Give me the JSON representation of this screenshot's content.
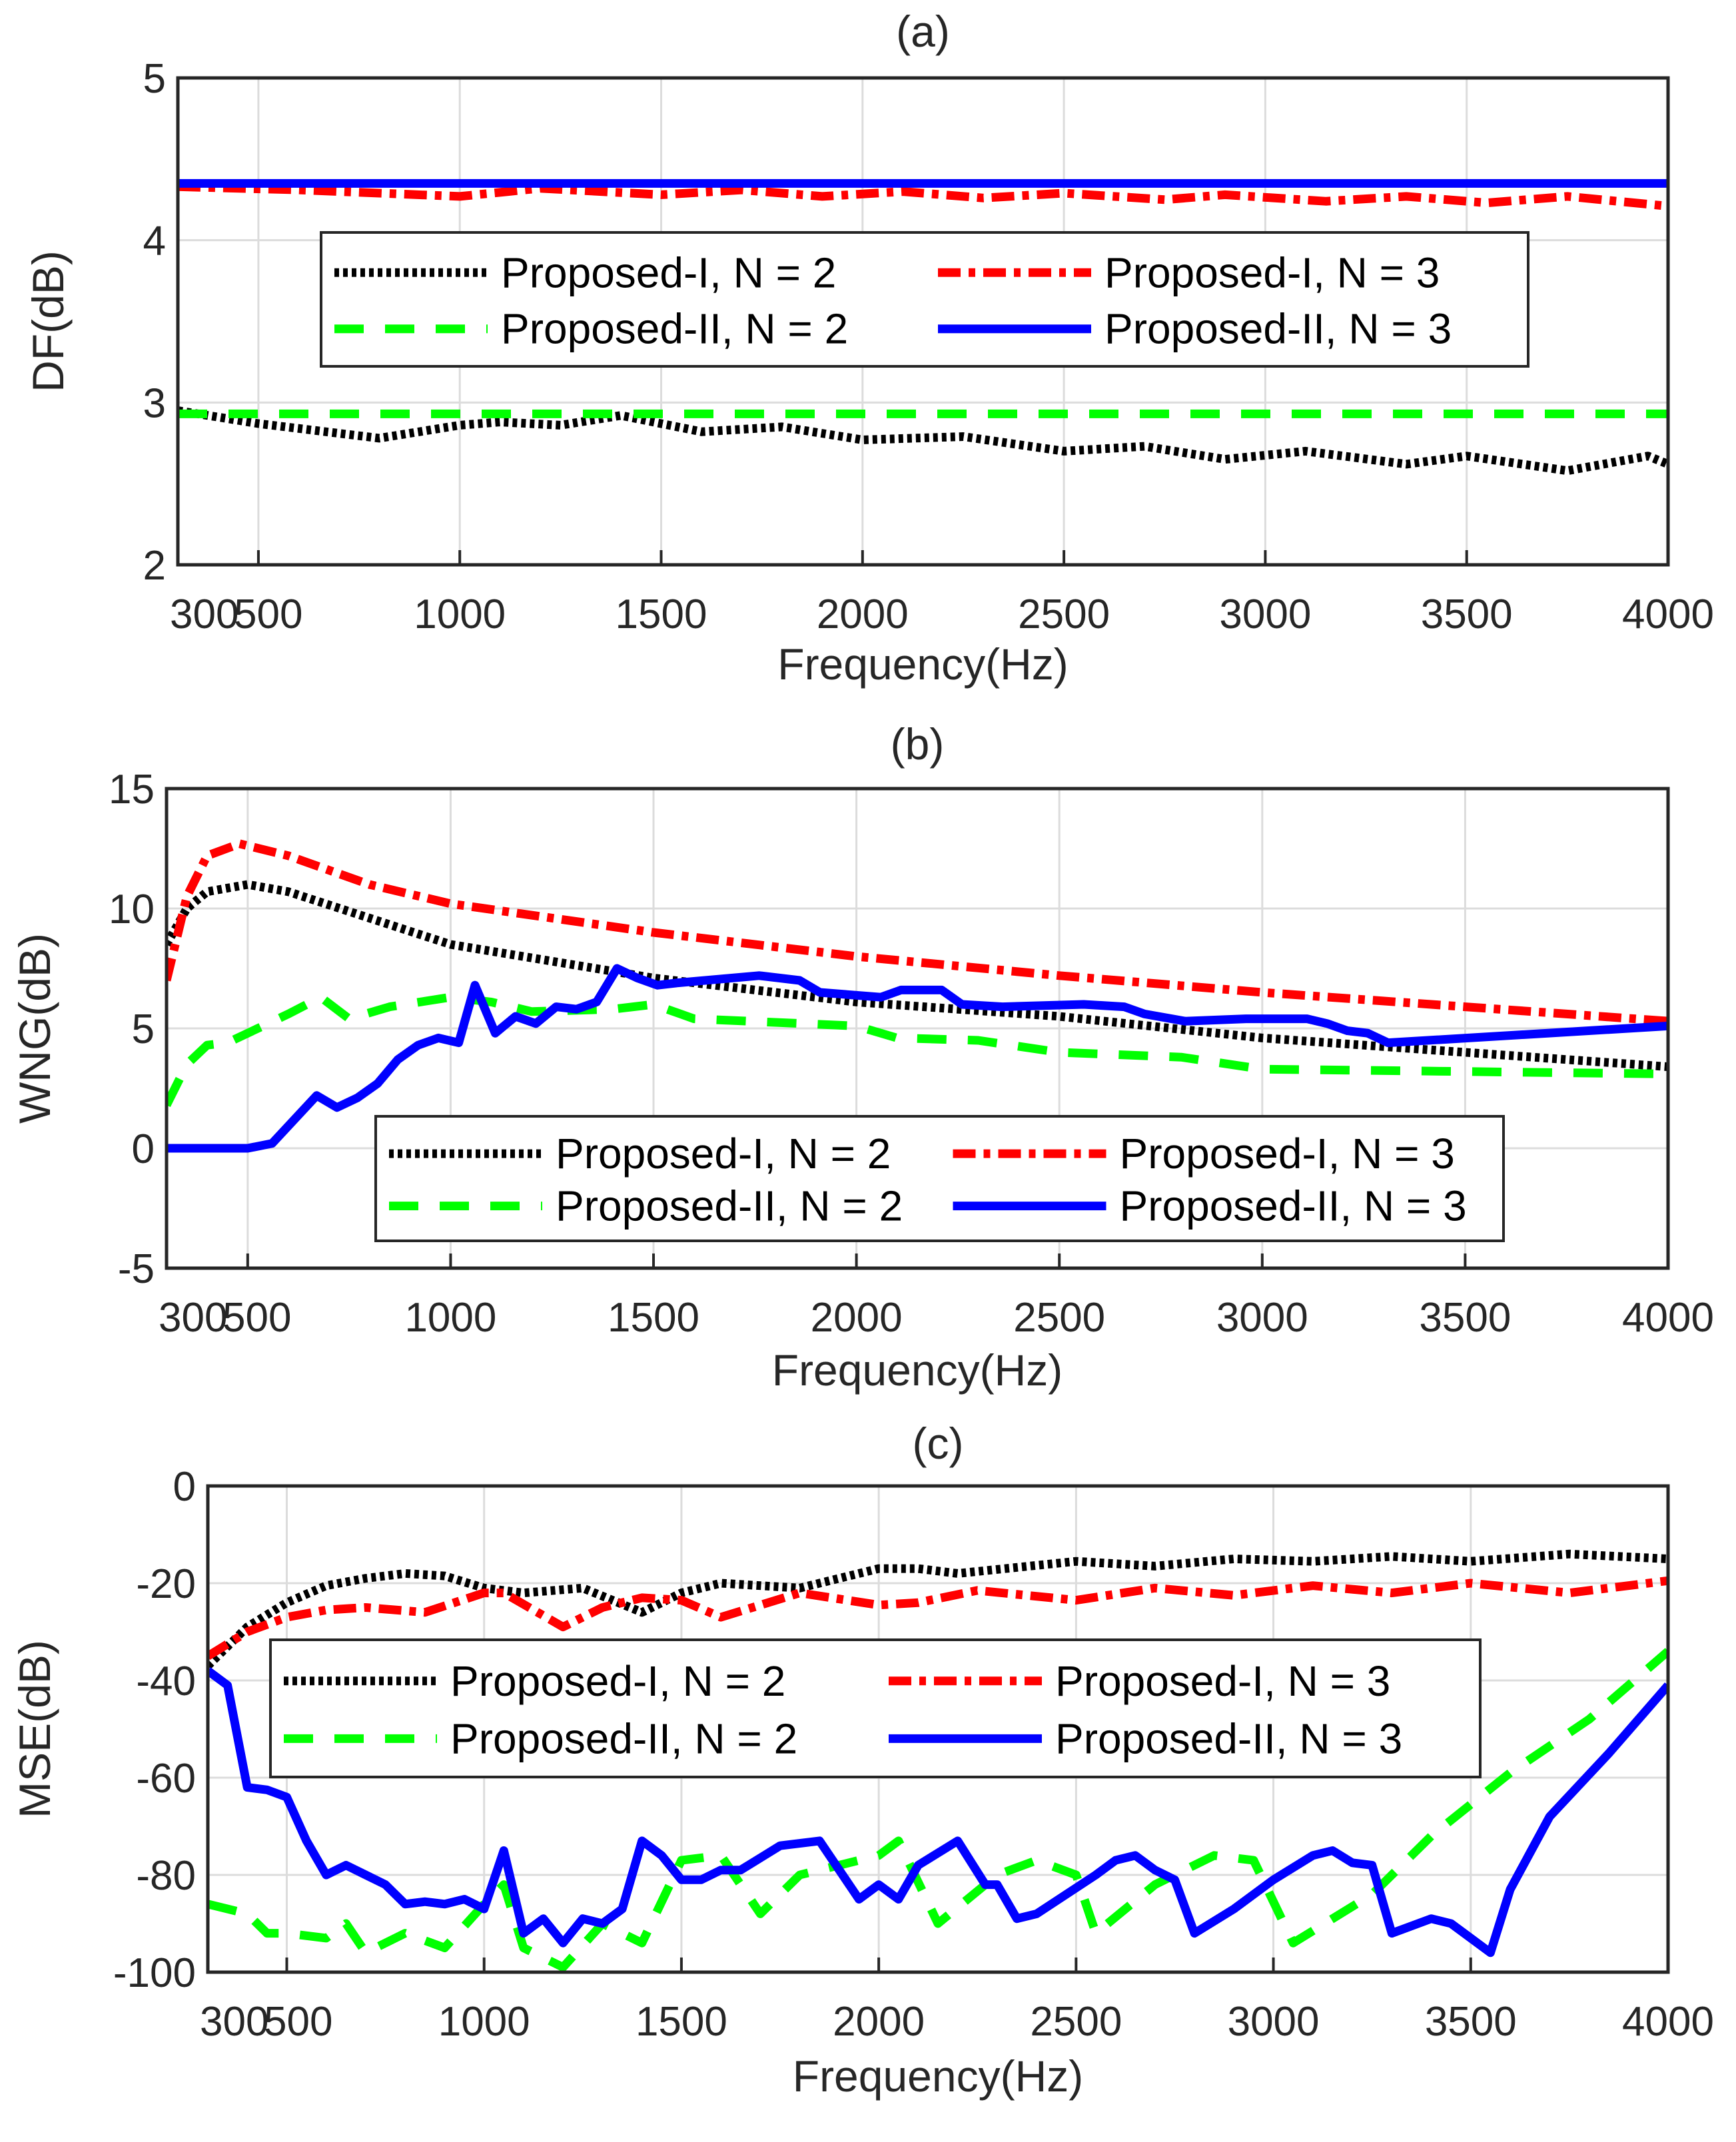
{
  "colors": {
    "p1n2": "#000000",
    "p1n3": "#ff0000",
    "p2n2": "#00ff00",
    "p2n3": "#0000ff"
  },
  "legend": [
    "Proposed-I,  N = 2",
    "Proposed-I,  N = 3",
    "Proposed-II, N = 2",
    "Proposed-II, N = 3"
  ],
  "chart_data": [
    {
      "type": "line",
      "title": "(a)",
      "xlabel": "Frequency(Hz)",
      "ylabel": "DF(dB)",
      "xlim": [
        300,
        4000
      ],
      "ylim": [
        2,
        5
      ],
      "xticks": [
        "300",
        "500",
        "1000",
        "1500",
        "2000",
        "2500",
        "3000",
        "3500",
        "4000"
      ],
      "yticks": [
        "2",
        "3",
        "4",
        "5"
      ],
      "grid": true,
      "legend_placement": "center",
      "series": [
        {
          "name": "Proposed-I,  N = 2",
          "style": "dotted",
          "x": [
            300,
            500,
            800,
            1000,
            1100,
            1250,
            1400,
            1600,
            1800,
            2000,
            2250,
            2500,
            2700,
            2900,
            3100,
            3350,
            3500,
            3750,
            3950,
            4000
          ],
          "y": [
            2.95,
            2.87,
            2.78,
            2.86,
            2.88,
            2.86,
            2.92,
            2.82,
            2.85,
            2.77,
            2.79,
            2.7,
            2.73,
            2.65,
            2.7,
            2.62,
            2.67,
            2.58,
            2.67,
            2.62
          ]
        },
        {
          "name": "Proposed-I,  N = 3",
          "style": "dashdot",
          "x": [
            300,
            600,
            1000,
            1200,
            1500,
            1700,
            1900,
            2100,
            2300,
            2500,
            2750,
            2900,
            3150,
            3350,
            3550,
            3750,
            4000
          ],
          "y": [
            4.33,
            4.31,
            4.27,
            4.32,
            4.28,
            4.31,
            4.27,
            4.3,
            4.26,
            4.29,
            4.25,
            4.28,
            4.24,
            4.27,
            4.23,
            4.27,
            4.21
          ]
        },
        {
          "name": "Proposed-II, N = 2",
          "style": "dashed",
          "x": [
            300,
            4000
          ],
          "y": [
            2.93,
            2.93
          ]
        },
        {
          "name": "Proposed-II, N = 3",
          "style": "solid",
          "x": [
            300,
            4000
          ],
          "y": [
            4.35,
            4.35
          ]
        }
      ]
    },
    {
      "type": "line",
      "title": "(b)",
      "xlabel": "Frequency(Hz)",
      "ylabel": "WNG(dB)",
      "xlim": [
        300,
        4000
      ],
      "ylim": [
        -5,
        15
      ],
      "xticks": [
        "300",
        "500",
        "1000",
        "1500",
        "2000",
        "2500",
        "3000",
        "3500",
        "4000"
      ],
      "yticks": [
        "-5",
        "0",
        "5",
        "10",
        "15"
      ],
      "grid": true,
      "legend_placement": "bottom",
      "series": [
        {
          "name": "Proposed-I,  N = 2",
          "style": "dotted",
          "x": [
            300,
            350,
            400,
            500,
            600,
            800,
            1000,
            1500,
            2000,
            2500,
            3000,
            3500,
            4000
          ],
          "y": [
            8.5,
            10,
            10.7,
            11,
            10.7,
            9.6,
            8.5,
            7.1,
            6.1,
            5.5,
            4.6,
            4.0,
            3.4
          ]
        },
        {
          "name": "Proposed-I,  N = 3",
          "style": "dashdot",
          "x": [
            300,
            350,
            400,
            480,
            600,
            800,
            1000,
            1500,
            2000,
            2500,
            3000,
            3500,
            4000
          ],
          "y": [
            7,
            10.5,
            12.2,
            12.7,
            12.2,
            11,
            10.2,
            9,
            8,
            7.2,
            6.5,
            5.9,
            5.3
          ]
        },
        {
          "name": "Proposed-II, N = 2",
          "style": "dashed",
          "x": [
            300,
            350,
            400,
            450,
            500,
            600,
            680,
            750,
            850,
            1000,
            1100,
            1200,
            1400,
            1500,
            1600,
            2000,
            2100,
            2300,
            2500,
            2800,
            3000,
            4000
          ],
          "y": [
            1.8,
            3.5,
            4.3,
            4.4,
            4.8,
            5.6,
            6.3,
            5.4,
            5.9,
            6.3,
            6.1,
            5.7,
            5.8,
            6.0,
            5.4,
            5.1,
            4.6,
            4.5,
            4.0,
            3.8,
            3.3,
            3.1
          ]
        },
        {
          "name": "Proposed-II, N = 3",
          "style": "solid",
          "x": [
            300,
            500,
            560,
            670,
            720,
            770,
            820,
            870,
            920,
            970,
            1020,
            1060,
            1110,
            1160,
            1210,
            1260,
            1310,
            1360,
            1410,
            1460,
            1510,
            1560,
            1760,
            1860,
            1910,
            2060,
            2110,
            2210,
            2260,
            2360,
            2560,
            2660,
            2710,
            2810,
            2960,
            3110,
            3160,
            3210,
            3260,
            3310,
            4000
          ],
          "y": [
            0,
            0,
            0.2,
            2.2,
            1.7,
            2.1,
            2.7,
            3.7,
            4.3,
            4.6,
            4.4,
            6.8,
            4.8,
            5.5,
            5.2,
            5.9,
            5.8,
            6.1,
            7.5,
            7.1,
            6.8,
            6.9,
            7.2,
            7.0,
            6.5,
            6.3,
            6.6,
            6.6,
            6.0,
            5.9,
            6.0,
            5.9,
            5.6,
            5.3,
            5.4,
            5.4,
            5.2,
            4.9,
            4.8,
            4.4,
            5.1
          ]
        }
      ]
    },
    {
      "type": "line",
      "title": "(c)",
      "xlabel": "Frequency(Hz)",
      "ylabel": "MSE(dB)",
      "xlim": [
        300,
        4000
      ],
      "ylim": [
        -100,
        0
      ],
      "xticks": [
        "300",
        "500",
        "1000",
        "1500",
        "2000",
        "2500",
        "3000",
        "3500",
        "4000"
      ],
      "yticks": [
        "-100",
        "-80",
        "-60",
        "-40",
        "-20",
        "0"
      ],
      "grid": true,
      "legend_placement": "center",
      "series": [
        {
          "name": "Proposed-I,  N = 2",
          "style": "dotted",
          "x": [
            300,
            400,
            500,
            600,
            700,
            800,
            900,
            1000,
            1100,
            1250,
            1400,
            1500,
            1600,
            1700,
            1800,
            2000,
            2100,
            2200,
            2500,
            2700,
            2900,
            3100,
            3300,
            3500,
            3750,
            4000
          ],
          "y": [
            -37,
            -29,
            -24,
            -20.5,
            -19,
            -18,
            -18.5,
            -21,
            -22,
            -21,
            -26,
            -22,
            -20,
            -20.5,
            -21,
            -17,
            -17,
            -18,
            -15.5,
            -16.5,
            -15,
            -15.5,
            -14.5,
            -15.5,
            -14,
            -15
          ]
        },
        {
          "name": "Proposed-I,  N = 3",
          "style": "dashdot",
          "x": [
            300,
            400,
            500,
            600,
            700,
            850,
            1000,
            1050,
            1200,
            1300,
            1400,
            1500,
            1600,
            1800,
            2000,
            2100,
            2250,
            2500,
            2700,
            2900,
            3100,
            3300,
            3500,
            3750,
            4000
          ],
          "y": [
            -35,
            -30,
            -27,
            -25.5,
            -25,
            -26,
            -22,
            -22,
            -29,
            -25,
            -23,
            -23.5,
            -27,
            -22,
            -24.5,
            -24,
            -21.5,
            -23.5,
            -21,
            -22.5,
            -20.5,
            -22,
            -20,
            -22,
            -19.5
          ]
        },
        {
          "name": "Proposed-II, N = 2",
          "style": "dashed",
          "x": [
            300,
            400,
            450,
            500,
            600,
            650,
            700,
            800,
            900,
            1000,
            1050,
            1100,
            1200,
            1300,
            1400,
            1500,
            1600,
            1700,
            1800,
            2000,
            2050,
            2150,
            2300,
            2400,
            2500,
            2550,
            2700,
            2850,
            2950,
            3050,
            3250,
            3400,
            3600,
            3800,
            4000
          ],
          "y": [
            -86,
            -88,
            -92,
            -92,
            -93,
            -90,
            -96,
            -92,
            -95,
            -86,
            -82,
            -95,
            -99,
            -90,
            -94,
            -77,
            -76,
            -88,
            -80,
            -76,
            -73,
            -90,
            -80,
            -77,
            -80,
            -92,
            -82,
            -76,
            -77,
            -94,
            -84,
            -72,
            -59,
            -48,
            -34
          ]
        },
        {
          "name": "Proposed-II, N = 3",
          "style": "solid",
          "x": [
            300,
            350,
            400,
            450,
            500,
            550,
            600,
            650,
            700,
            750,
            800,
            850,
            900,
            950,
            1000,
            1050,
            1100,
            1150,
            1200,
            1250,
            1300,
            1350,
            1400,
            1450,
            1500,
            1550,
            1600,
            1650,
            1750,
            1850,
            1950,
            2000,
            2050,
            2100,
            2200,
            2270,
            2300,
            2350,
            2400,
            2550,
            2600,
            2650,
            2700,
            2750,
            2800,
            2900,
            3000,
            3100,
            3150,
            3200,
            3250,
            3300,
            3400,
            3450,
            3500,
            3550,
            3600,
            3700,
            3850,
            4000
          ],
          "y": [
            -38,
            -41,
            -62,
            -62.5,
            -64,
            -73,
            -80,
            -78,
            -80,
            -82,
            -86,
            -85.5,
            -86,
            -85,
            -87,
            -75,
            -92,
            -89,
            -94,
            -89,
            -90,
            -87,
            -73,
            -76,
            -81,
            -81,
            -79,
            -79,
            -74,
            -73,
            -85,
            -82,
            -85,
            -78,
            -73,
            -82,
            -82,
            -89,
            -88,
            -80,
            -77,
            -76,
            -79,
            -81,
            -92,
            -87,
            -81,
            -76,
            -75,
            -77.5,
            -78,
            -92,
            -89,
            -90,
            -93,
            -96,
            -83,
            -68,
            -55,
            -41
          ]
        }
      ]
    }
  ]
}
